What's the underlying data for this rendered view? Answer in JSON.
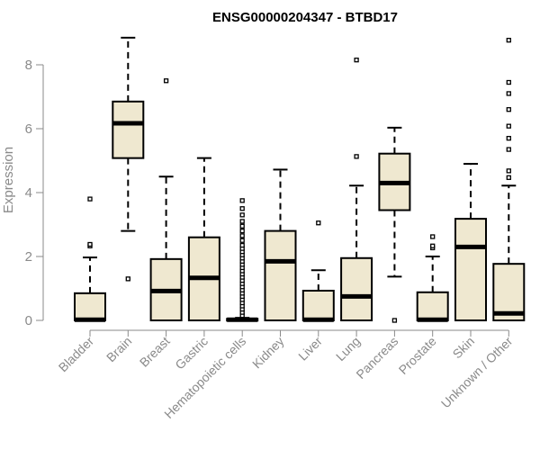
{
  "chart_data": {
    "type": "boxplot",
    "title": "ENSG00000204347 - BTBD17",
    "xlabel": "",
    "ylabel": "Expression",
    "ylim": [
      0,
      9
    ],
    "yticks": [
      0,
      2,
      4,
      6,
      8
    ],
    "grid": false,
    "legend": "none",
    "box_fill": "#efe8d0",
    "box_stroke": "#000000",
    "categories": [
      "Bladder",
      "Brain",
      "Breast",
      "Gastric",
      "Hematopoietic cells",
      "Kidney",
      "Liver",
      "Lung",
      "Pancreas",
      "Prostate",
      "Skin",
      "Unknown / Other"
    ],
    "boxes": [
      {
        "q1": 0.0,
        "median": 0.02,
        "q3": 0.85,
        "whisker_low": 0.0,
        "whisker_high": 1.97,
        "outliers": [
          2.33,
          2.38,
          3.8
        ]
      },
      {
        "q1": 5.08,
        "median": 6.17,
        "q3": 6.85,
        "whisker_low": 2.8,
        "whisker_high": 8.85,
        "outliers": [
          1.3
        ]
      },
      {
        "q1": 0.0,
        "median": 0.92,
        "q3": 1.92,
        "whisker_low": 0.0,
        "whisker_high": 4.5,
        "outliers": [
          7.5
        ]
      },
      {
        "q1": 0.0,
        "median": 1.33,
        "q3": 2.6,
        "whisker_low": 0.0,
        "whisker_high": 5.08,
        "outliers": []
      },
      {
        "q1": 0.0,
        "median": 0.02,
        "q3": 0.05,
        "whisker_low": 0.0,
        "whisker_high": 0.08,
        "outliers": [
          0.15,
          0.25,
          0.35,
          0.45,
          0.55,
          0.65,
          0.75,
          0.85,
          0.95,
          1.05,
          1.15,
          1.25,
          1.35,
          1.45,
          1.55,
          1.65,
          1.75,
          1.85,
          1.95,
          2.05,
          2.15,
          2.25,
          2.35,
          2.5,
          2.65,
          2.8,
          2.95,
          3.1,
          3.3,
          3.5,
          3.75
        ]
      },
      {
        "q1": 0.0,
        "median": 1.85,
        "q3": 2.8,
        "whisker_low": 0.0,
        "whisker_high": 4.72,
        "outliers": []
      },
      {
        "q1": 0.0,
        "median": 0.02,
        "q3": 0.93,
        "whisker_low": 0.0,
        "whisker_high": 1.57,
        "outliers": [
          3.05
        ]
      },
      {
        "q1": 0.0,
        "median": 0.75,
        "q3": 1.95,
        "whisker_low": 0.0,
        "whisker_high": 4.22,
        "outliers": [
          5.13,
          8.15
        ]
      },
      {
        "q1": 3.45,
        "median": 4.3,
        "q3": 5.22,
        "whisker_low": 1.37,
        "whisker_high": 6.03,
        "outliers": [
          0.0
        ]
      },
      {
        "q1": 0.0,
        "median": 0.02,
        "q3": 0.88,
        "whisker_low": 0.0,
        "whisker_high": 2.0,
        "outliers": [
          2.27,
          2.33,
          2.62
        ]
      },
      {
        "q1": 0.0,
        "median": 2.3,
        "q3": 3.18,
        "whisker_low": 0.0,
        "whisker_high": 4.9,
        "outliers": []
      },
      {
        "q1": 0.0,
        "median": 0.22,
        "q3": 1.77,
        "whisker_low": 0.0,
        "whisker_high": 4.22,
        "outliers": [
          4.47,
          4.68,
          5.35,
          5.7,
          6.08,
          6.6,
          7.1,
          7.45,
          8.77
        ]
      }
    ]
  }
}
